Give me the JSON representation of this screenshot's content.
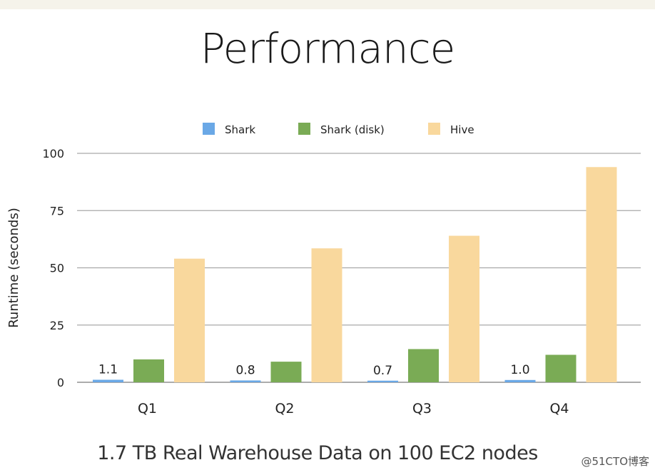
{
  "watermark": "@51CTO博客",
  "chart_data": {
    "type": "bar",
    "title": "Performance",
    "subtitle": "1.7 TB Real Warehouse Data on 100 EC2 nodes",
    "xlabel": "",
    "ylabel": "Runtime (seconds)",
    "ylim": [
      0,
      100
    ],
    "yticks": [
      0,
      25,
      50,
      75,
      100
    ],
    "grid": true,
    "legend_position": "top",
    "categories": [
      "Q1",
      "Q2",
      "Q3",
      "Q4"
    ],
    "series": [
      {
        "name": "Shark",
        "color": "#6aa8e6",
        "values": [
          1.1,
          0.8,
          0.7,
          1.0
        ],
        "labels": [
          "1.1",
          "0.8",
          "0.7",
          "1.0"
        ]
      },
      {
        "name": "Shark (disk)",
        "color": "#7aab55",
        "values": [
          10,
          9,
          14.5,
          12
        ]
      },
      {
        "name": "Hive",
        "color": "#f9d89d",
        "values": [
          54,
          58.5,
          64,
          94
        ]
      }
    ]
  }
}
